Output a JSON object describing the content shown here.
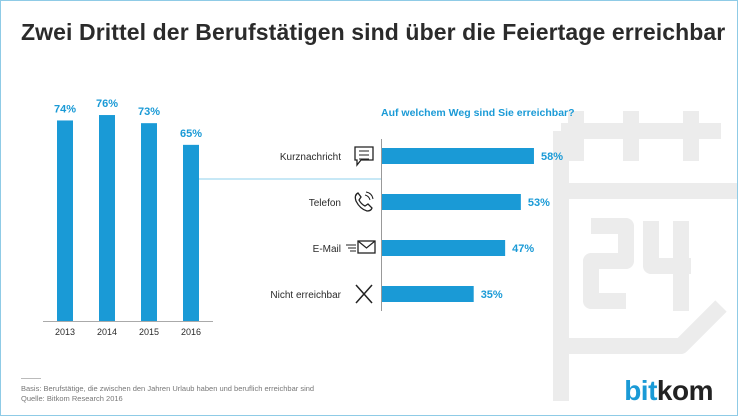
{
  "title": "Zwei Drittel der Berufstätigen sind über die Feiertage erreichbar",
  "colors": {
    "bar": "#1a9ad6",
    "label": "#1a9ad6",
    "text": "#2b2b2b",
    "watermark": "#ececec"
  },
  "chart_data": [
    {
      "type": "bar",
      "categories": [
        "2013",
        "2014",
        "2015",
        "2016"
      ],
      "values": [
        74,
        76,
        73,
        65
      ],
      "data_labels": [
        "74%",
        "76%",
        "73%",
        "65%"
      ],
      "ylim": [
        0,
        100
      ],
      "grid": false
    },
    {
      "type": "bar",
      "orientation": "horizontal",
      "title": "Auf welchem Weg sind Sie erreichbar?",
      "categories": [
        "Kurznachricht",
        "Telefon",
        "E-Mail",
        "Nicht erreichbar"
      ],
      "icons": [
        "message-icon",
        "phone-icon",
        "email-icon",
        "x-icon"
      ],
      "values": [
        58,
        53,
        47,
        35
      ],
      "data_labels": [
        "58%",
        "53%",
        "47%",
        "35%"
      ],
      "grid": false
    }
  ],
  "footer": {
    "basis": "Basis: Berufstätige, die zwischen den Jahren Urlaub haben und beruflich erreichbar sind",
    "source": "Quelle: Bitkom Research 2016"
  },
  "logo": {
    "part1": "bit",
    "part2": "kom"
  }
}
